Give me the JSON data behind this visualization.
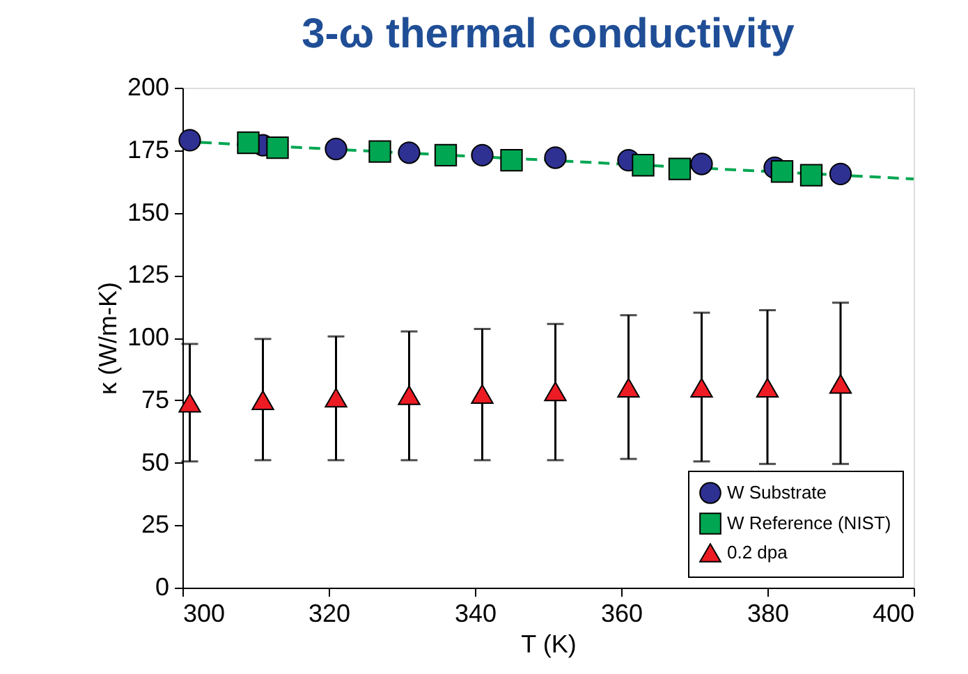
{
  "chart_data": {
    "type": "scatter",
    "title": "3-ω thermal conductivity",
    "xlabel": "T (K)",
    "ylabel": "κ (W/m-K)",
    "xlim": [
      300,
      400
    ],
    "xticks": [
      300,
      320,
      340,
      360,
      380,
      400
    ],
    "ylim": [
      0,
      200
    ],
    "yticks": [
      0,
      25,
      50,
      75,
      100,
      125,
      150,
      175,
      200
    ],
    "grid": false,
    "legend": "bottom right",
    "series": [
      {
        "name": "W Substrate",
        "marker": "circle",
        "color": "#2e3192",
        "x": [
          301,
          311,
          321,
          331,
          341,
          351,
          361,
          371,
          381,
          390
        ],
        "values": [
          179,
          177,
          175.5,
          174,
          173,
          172,
          171,
          169.5,
          168,
          165.5
        ]
      },
      {
        "name": "W Reference (NIST)",
        "marker": "square",
        "color": "#00a651",
        "x": [
          309,
          313,
          327,
          336,
          345,
          363,
          368,
          382,
          386
        ],
        "values": [
          178,
          176,
          174.5,
          173,
          171,
          169,
          167.5,
          166.5,
          165
        ]
      },
      {
        "type": "line",
        "line_style": "dashed",
        "color": "#00a651",
        "x": [
          300,
          400
        ],
        "values": [
          178.5,
          163.5
        ]
      },
      {
        "name": "0.2 dpa",
        "marker": "triangle",
        "color": "#ed1c24",
        "x": [
          301,
          311,
          321,
          331,
          341,
          351,
          361,
          371,
          380,
          390
        ],
        "values": [
          74,
          75,
          76,
          77,
          77.5,
          78.5,
          80,
          80,
          80,
          81.5
        ],
        "errors": [
          [
            50.5,
            97.5
          ],
          [
            51,
            99.5
          ],
          [
            51,
            100.5
          ],
          [
            51,
            102.5
          ],
          [
            51,
            103.5
          ],
          [
            51,
            105.5
          ],
          [
            51.5,
            109
          ],
          [
            50.5,
            110
          ],
          [
            49.5,
            111
          ],
          [
            49.5,
            114
          ]
        ]
      }
    ]
  }
}
